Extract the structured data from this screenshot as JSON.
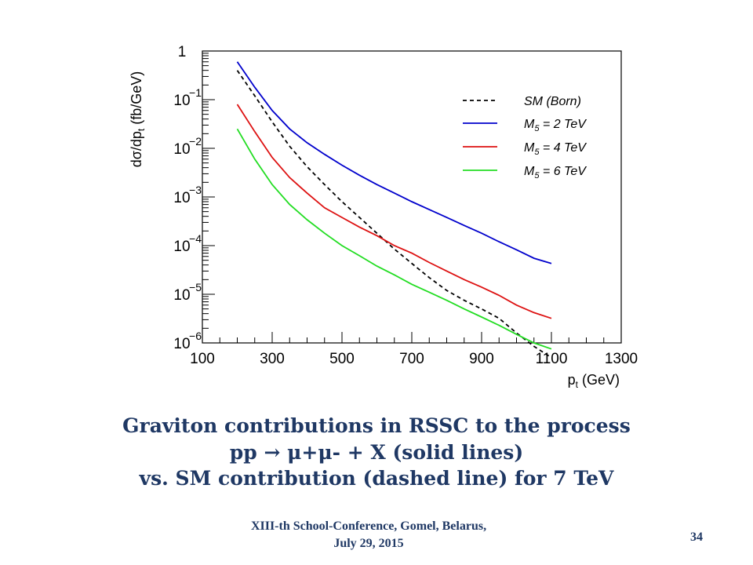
{
  "chart_data": {
    "type": "line",
    "xlim": [
      100,
      1300
    ],
    "ylim_log10": [
      -6,
      0
    ],
    "log_y": true,
    "x_ticks": [
      100,
      300,
      500,
      700,
      900,
      1100,
      1300
    ],
    "y_ticks": [
      {
        "exp": 0,
        "label": "1"
      },
      {
        "exp": -1,
        "label": "10",
        "sup": "−1"
      },
      {
        "exp": -2,
        "label": "10",
        "sup": "−2"
      },
      {
        "exp": -3,
        "label": "10",
        "sup": "−3"
      },
      {
        "exp": -4,
        "label": "10",
        "sup": "−4"
      },
      {
        "exp": -5,
        "label": "10",
        "sup": "−5"
      },
      {
        "exp": -6,
        "label": "10",
        "sup": "−6"
      }
    ],
    "xlabel": "pₜ (GeV)",
    "xlabel_main": "p",
    "xlabel_sub": "t",
    "xlabel_unit": " (GeV)",
    "ylabel": "dσ/dpₜ (fb/GeV)",
    "ylabel_prefix": "dσ/dp",
    "ylabel_sub": "t",
    "ylabel_unit": " (fb/GeV)",
    "legend_position": "top-right",
    "grid": false,
    "series": [
      {
        "name": "SM (Born)",
        "legend_main": "SM (Born)",
        "legend_sub": "",
        "legend_rest": "",
        "color": "#000000",
        "dashed": true,
        "x": [
          200,
          250,
          300,
          350,
          400,
          450,
          500,
          550,
          600,
          650,
          700,
          750,
          800,
          850,
          900,
          950,
          1000,
          1050,
          1100
        ],
        "y": [
          0.4,
          0.12,
          0.035,
          0.011,
          0.0042,
          0.0018,
          0.0008,
          0.00038,
          0.00018,
          8.5e-05,
          4.3e-05,
          2.2e-05,
          1.2e-05,
          7.5e-06,
          5e-06,
          3.2e-06,
          1.6e-06,
          8.5e-07,
          5e-07
        ]
      },
      {
        "name": "M5 = 2 TeV",
        "legend_main": "M",
        "legend_sub": "5",
        "legend_rest": " = 2 TeV",
        "color": "#0000cc",
        "dashed": false,
        "x": [
          200,
          250,
          300,
          350,
          400,
          450,
          500,
          550,
          600,
          650,
          700,
          750,
          800,
          850,
          900,
          950,
          1000,
          1050,
          1100
        ],
        "y": [
          0.6,
          0.18,
          0.06,
          0.025,
          0.013,
          0.0075,
          0.0045,
          0.0028,
          0.0018,
          0.0012,
          0.0008,
          0.00055,
          0.00038,
          0.00026,
          0.00018,
          0.00012,
          8.2e-05,
          5.5e-05,
          4.3e-05
        ]
      },
      {
        "name": "M5 = 4 TeV",
        "legend_main": "M",
        "legend_sub": "5",
        "legend_rest": " = 4 TeV",
        "color": "#dd1111",
        "dashed": false,
        "x": [
          200,
          250,
          300,
          350,
          400,
          450,
          500,
          550,
          600,
          650,
          700,
          750,
          800,
          850,
          900,
          950,
          1000,
          1050,
          1100
        ],
        "y": [
          0.08,
          0.022,
          0.0065,
          0.0025,
          0.0012,
          0.0006,
          0.00038,
          0.00024,
          0.00016,
          0.0001,
          7e-05,
          4.5e-05,
          3e-05,
          2e-05,
          1.4e-05,
          9.5e-06,
          6e-06,
          4.2e-06,
          3.2e-06
        ]
      },
      {
        "name": "M5 = 6 TeV",
        "legend_main": "M",
        "legend_sub": "5",
        "legend_rest": " = 6 TeV",
        "color": "#22dd22",
        "dashed": false,
        "x": [
          200,
          250,
          300,
          350,
          400,
          450,
          500,
          550,
          600,
          650,
          700,
          750,
          800,
          850,
          900,
          950,
          1000,
          1050,
          1100
        ],
        "y": [
          0.025,
          0.006,
          0.0018,
          0.0007,
          0.00034,
          0.00018,
          0.0001,
          6.2e-05,
          3.8e-05,
          2.5e-05,
          1.6e-05,
          1.1e-05,
          7.5e-06,
          5e-06,
          3.4e-06,
          2.3e-06,
          1.5e-06,
          1e-06,
          7.5e-07
        ]
      }
    ]
  },
  "caption": {
    "line1": "Graviton contributions in RSSC to the process",
    "line2": "pp → μ+μ- + X  (solid lines)",
    "line3": "vs. SM contribution (dashed line) for 7 TeV"
  },
  "footer": {
    "conference": "XIII-th School-Conference, Gomel, Belarus,",
    "date": "July 29, 2015",
    "page": "34"
  }
}
